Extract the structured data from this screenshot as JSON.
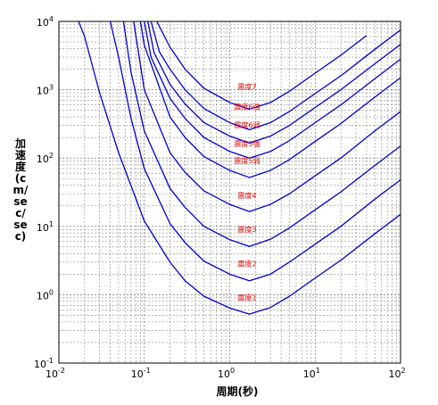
{
  "chart_data": {
    "type": "line",
    "title": "",
    "xlabel": "周期(秒)",
    "ylabel": "加速度(cm/sec/sec)",
    "x_scale": "log",
    "y_scale": "log",
    "xlim": [
      0.01,
      100
    ],
    "ylim": [
      0.1,
      10000
    ],
    "grid": true,
    "x_ticks": [
      {
        "base": "10",
        "exp": "-2"
      },
      {
        "base": "10",
        "exp": "-1"
      },
      {
        "base": "10",
        "exp": "0"
      },
      {
        "base": "10",
        "exp": "1"
      },
      {
        "base": "10",
        "exp": "2"
      }
    ],
    "y_ticks": [
      {
        "base": "10",
        "exp": "-1"
      },
      {
        "base": "10",
        "exp": "0"
      },
      {
        "base": "10",
        "exp": "1"
      },
      {
        "base": "10",
        "exp": "2"
      },
      {
        "base": "10",
        "exp": "3"
      },
      {
        "base": "10",
        "exp": "4"
      }
    ],
    "line_color": "#0000cc",
    "label_color": "#dd0000",
    "series": [
      {
        "name": "震度1",
        "label_x": 1.6,
        "label_y": 0.9,
        "x": [
          0.017,
          0.02,
          0.03,
          0.05,
          0.1,
          0.2,
          0.3,
          0.5,
          1.0,
          1.7,
          3,
          5,
          10,
          20,
          50,
          100
        ],
        "y": [
          10000,
          6000,
          900,
          120,
          12,
          3.0,
          1.6,
          0.95,
          0.64,
          0.52,
          0.65,
          0.95,
          1.75,
          3.2,
          7.8,
          15
        ]
      },
      {
        "name": "震度2",
        "label_x": 1.6,
        "label_y": 2.8,
        "x": [
          0.04,
          0.05,
          0.07,
          0.1,
          0.2,
          0.3,
          0.5,
          1.0,
          1.7,
          3,
          5,
          10,
          20,
          50,
          100
        ],
        "y": [
          10000,
          3000,
          380,
          70,
          11,
          5.8,
          3.1,
          2.0,
          1.6,
          2.0,
          3.0,
          5.5,
          10,
          25,
          48
        ]
      },
      {
        "name": "震度3",
        "label_x": 1.6,
        "label_y": 9.0,
        "x": [
          0.057,
          0.07,
          0.1,
          0.2,
          0.3,
          0.5,
          1.0,
          1.7,
          3,
          5,
          10,
          20,
          50,
          100
        ],
        "y": [
          10000,
          1800,
          250,
          36,
          19,
          10,
          6.4,
          5.1,
          6.5,
          9.5,
          17.5,
          32,
          78,
          150
        ]
      },
      {
        "name": "震度4",
        "label_x": 1.6,
        "label_y": 28,
        "x": [
          0.075,
          0.1,
          0.2,
          0.3,
          0.5,
          1.0,
          1.7,
          3,
          5,
          10,
          20,
          50,
          100
        ],
        "y": [
          10000,
          1000,
          120,
          62,
          33,
          21,
          16.5,
          21,
          30,
          55,
          100,
          250,
          480
        ]
      },
      {
        "name": "震度5弱",
        "label_x": 1.6,
        "label_y": 90,
        "x": [
          0.09,
          0.1,
          0.2,
          0.3,
          0.5,
          1.0,
          1.7,
          3,
          5,
          10,
          20,
          50,
          100
        ],
        "y": [
          10000,
          4500,
          400,
          200,
          105,
          66,
          52,
          66,
          95,
          175,
          320,
          780,
          1500
        ]
      },
      {
        "name": "震度5強",
        "label_x": 1.6,
        "label_y": 160,
        "x": [
          0.1,
          0.12,
          0.2,
          0.3,
          0.5,
          1.0,
          1.7,
          3,
          5,
          10,
          20,
          50,
          100
        ],
        "y": [
          10000,
          3000,
          750,
          380,
          200,
          125,
          100,
          125,
          180,
          330,
          600,
          1450,
          2800
        ]
      },
      {
        "name": "震度6弱",
        "label_x": 1.6,
        "label_y": 300,
        "x": [
          0.11,
          0.13,
          0.2,
          0.3,
          0.5,
          1.0,
          1.7,
          3,
          5,
          10,
          20,
          50,
          100
        ],
        "y": [
          10000,
          3500,
          1200,
          620,
          330,
          210,
          165,
          210,
          300,
          550,
          1000,
          2400,
          4600
        ]
      },
      {
        "name": "震度6強",
        "label_x": 1.6,
        "label_y": 560,
        "x": [
          0.12,
          0.15,
          0.2,
          0.3,
          0.5,
          1.0,
          1.7,
          3,
          5,
          10,
          20,
          50,
          100
        ],
        "y": [
          10000,
          3600,
          2000,
          1000,
          530,
          330,
          260,
          330,
          480,
          880,
          1600,
          3900,
          7500
        ]
      },
      {
        "name": "震度7",
        "label_x": 1.6,
        "label_y": 1100,
        "x": [
          0.14,
          0.2,
          0.3,
          0.5,
          1.0,
          1.7,
          3,
          5,
          10,
          20,
          40
        ],
        "y": [
          10000,
          4200,
          2000,
          1050,
          650,
          520,
          650,
          950,
          1750,
          3200,
          6200
        ]
      }
    ]
  }
}
